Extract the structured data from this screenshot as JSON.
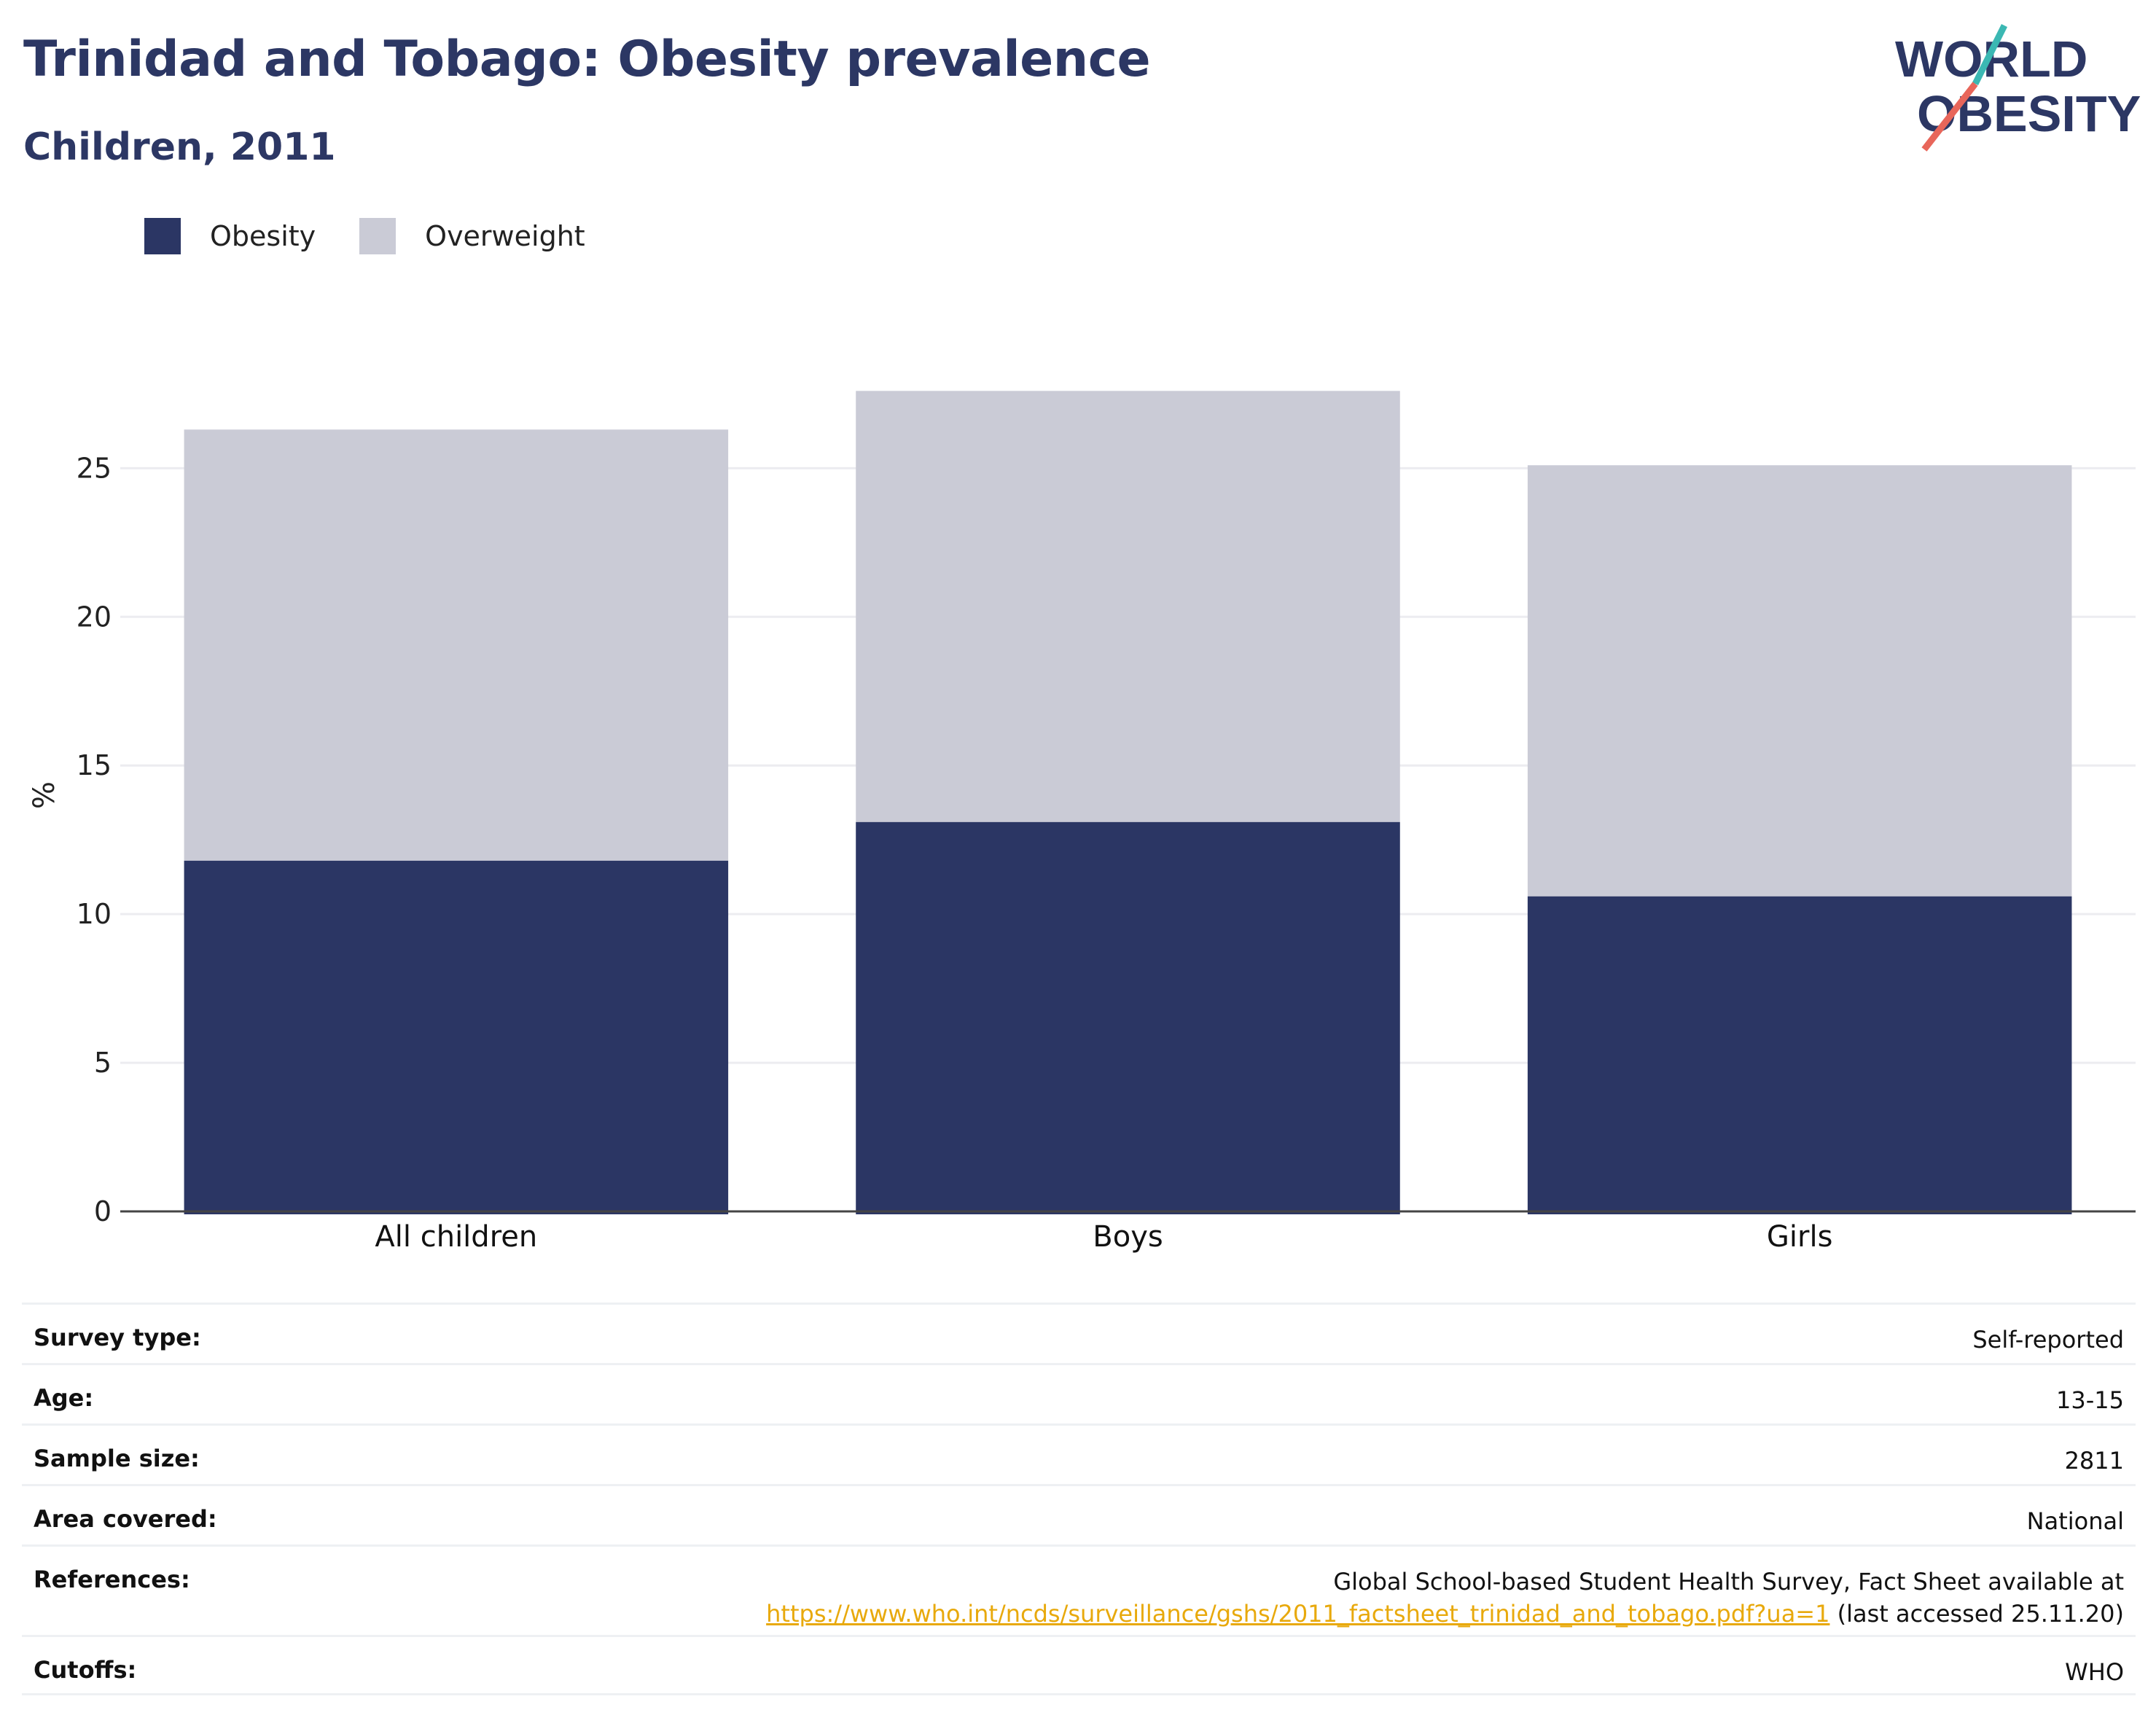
{
  "header": {
    "title": "Trinidad and Tobago: Obesity prevalence",
    "subtitle": "Children, 2011"
  },
  "logo": {
    "line1": "WORLD",
    "line2": "OBESITY",
    "colors": {
      "text": "#2c3764",
      "slash_top": "#3bb8b3",
      "slash_bottom": "#e8665a"
    }
  },
  "legend": [
    {
      "label": "Obesity",
      "color": "#2b3664"
    },
    {
      "label": "Overweight",
      "color": "#cacbd6"
    }
  ],
  "chart_data": {
    "type": "bar",
    "stacked": true,
    "categories": [
      "All children",
      "Boys",
      "Girls"
    ],
    "series": [
      {
        "name": "Obesity",
        "values": [
          11.8,
          13.1,
          10.6
        ],
        "color": "#2b3664"
      },
      {
        "name": "Overweight",
        "values": [
          14.5,
          14.5,
          14.5
        ],
        "color": "#cacbd6"
      }
    ],
    "ylabel": "%",
    "ylim": [
      0,
      28
    ],
    "yticks": [
      0,
      5,
      10,
      15,
      20,
      25
    ],
    "grid": true,
    "legend_position": "top-left"
  },
  "info": [
    {
      "key": "Survey type:",
      "value": "Self-reported"
    },
    {
      "key": "Age:",
      "value": "13-15"
    },
    {
      "key": "Sample size:",
      "value": "2811"
    },
    {
      "key": "Area covered:",
      "value": "National"
    },
    {
      "key": "References:",
      "value": "Global School-based Student Health Survey, Fact Sheet available at",
      "link": "https://www.who.int/ncds/surveillance/gshs/2011_factsheet_trinidad_and_tobago.pdf?ua=1",
      "suffix": " (last accessed 25.11.20)"
    },
    {
      "key": "Cutoffs:",
      "value": "WHO"
    }
  ]
}
